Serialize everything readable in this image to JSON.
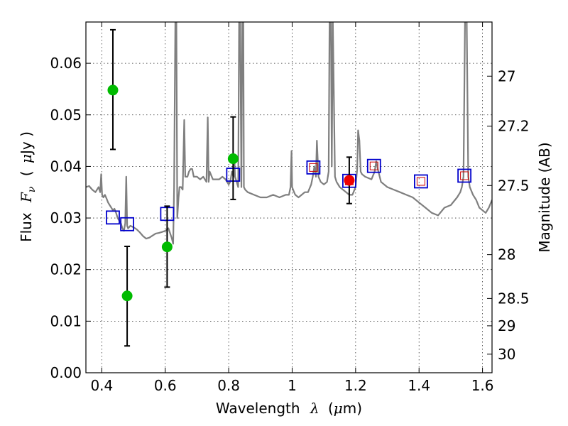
{
  "chart_data": {
    "type": "scatter",
    "xlabel_main": "Wavelength",
    "xlabel_symbol": "λ",
    "xlabel_unit_open": "(",
    "xlabel_unit_mu": "μ",
    "xlabel_unit_rest": "m)",
    "ylabel_main": "Flux",
    "ylabel_symbol": "F",
    "ylabel_subscript": "ν",
    "ylabel_unit_open": "(",
    "ylabel_unit_mu": "μ",
    "ylabel_unit_rest": "Jy )",
    "y2label": "Magnitude (AB)",
    "xlim": [
      0.35,
      1.63
    ],
    "ylim": [
      0.0,
      0.068
    ],
    "grid": true,
    "x_ticks": [
      0.4,
      0.6,
      0.8,
      1.0,
      1.2,
      1.4,
      1.6
    ],
    "x_tick_labels": [
      "0.4",
      "0.6",
      "0.8",
      "1",
      "1.2",
      "1.4",
      "1.6"
    ],
    "y_ticks": [
      0.0,
      0.01,
      0.02,
      0.03,
      0.04,
      0.05,
      0.06
    ],
    "y_tick_labels": [
      "0.00",
      "0.01",
      "0.02",
      "0.03",
      "0.04",
      "0.05",
      "0.06"
    ],
    "y2_ticks": [
      {
        "flux": 0.0575,
        "label": "27"
      },
      {
        "flux": 0.0478,
        "label": "27.2"
      },
      {
        "flux": 0.0363,
        "label": "27.5"
      },
      {
        "flux": 0.0229,
        "label": "28"
      },
      {
        "flux": 0.0144,
        "label": "28.5"
      },
      {
        "flux": 0.0091,
        "label": "29"
      },
      {
        "flux": 0.0036,
        "label": "30"
      }
    ],
    "colors": {
      "spectrum": "#7f7f7f",
      "observed": "#00bb00",
      "detection": "#ee0000",
      "model_box": "#0000cc",
      "model_inner": "#cc0000",
      "errorbar": "#000000"
    },
    "observed_points": [
      {
        "x": 0.435,
        "y": 0.0548,
        "yerr_low": 0.0433,
        "yerr_high": 0.0665
      },
      {
        "x": 0.48,
        "y": 0.0149,
        "yerr_low": 0.0052,
        "yerr_high": 0.0245
      },
      {
        "x": 0.606,
        "y": 0.0244,
        "yerr_low": 0.0166,
        "yerr_high": 0.0323
      },
      {
        "x": 0.814,
        "y": 0.0415,
        "yerr_low": 0.0336,
        "yerr_high": 0.0496
      }
    ],
    "detection_points": [
      {
        "x": 1.18,
        "y": 0.0373,
        "yerr_low": 0.0328,
        "yerr_high": 0.0418
      }
    ],
    "model_points": [
      {
        "x": 0.435,
        "y": 0.0301,
        "inner": false
      },
      {
        "x": 0.48,
        "y": 0.0288,
        "inner": false
      },
      {
        "x": 0.606,
        "y": 0.0308,
        "inner": false
      },
      {
        "x": 0.814,
        "y": 0.0384,
        "inner": false
      },
      {
        "x": 1.067,
        "y": 0.0398,
        "inner": true
      },
      {
        "x": 1.18,
        "y": 0.0372,
        "inner": true
      },
      {
        "x": 1.258,
        "y": 0.0401,
        "inner": true
      },
      {
        "x": 1.406,
        "y": 0.0371,
        "inner": true
      },
      {
        "x": 1.543,
        "y": 0.0382,
        "inner": true
      }
    ],
    "spectrum": {
      "x": [
        0.35,
        0.36,
        0.37,
        0.38,
        0.39,
        0.395,
        0.398,
        0.401,
        0.405,
        0.41,
        0.415,
        0.42,
        0.425,
        0.43,
        0.435,
        0.44,
        0.445,
        0.45,
        0.455,
        0.46,
        0.465,
        0.47,
        0.474,
        0.477,
        0.48,
        0.483,
        0.49,
        0.5,
        0.51,
        0.52,
        0.53,
        0.54,
        0.55,
        0.56,
        0.57,
        0.58,
        0.59,
        0.6,
        0.61,
        0.62,
        0.625,
        0.628,
        0.632,
        0.635,
        0.638,
        0.642,
        0.645,
        0.65,
        0.655,
        0.66,
        0.663,
        0.666,
        0.67,
        0.675,
        0.68,
        0.685,
        0.69,
        0.7,
        0.71,
        0.72,
        0.73,
        0.734,
        0.737,
        0.74,
        0.75,
        0.76,
        0.77,
        0.78,
        0.79,
        0.8,
        0.805,
        0.81,
        0.815,
        0.818,
        0.82,
        0.825,
        0.83,
        0.833,
        0.836,
        0.84,
        0.843,
        0.846,
        0.848,
        0.852,
        0.86,
        0.88,
        0.9,
        0.92,
        0.94,
        0.96,
        0.98,
        0.99,
        0.995,
        0.998,
        1.0,
        1.003,
        1.006,
        1.01,
        1.02,
        1.03,
        1.04,
        1.05,
        1.06,
        1.065,
        1.07,
        1.075,
        1.078,
        1.083,
        1.09,
        1.1,
        1.11,
        1.115,
        1.118,
        1.122,
        1.125,
        1.128,
        1.135,
        1.14,
        1.15,
        1.16,
        1.17,
        1.18,
        1.19,
        1.2,
        1.205,
        1.208,
        1.212,
        1.216,
        1.22,
        1.23,
        1.25,
        1.26,
        1.265,
        1.27,
        1.28,
        1.3,
        1.32,
        1.34,
        1.36,
        1.38,
        1.4,
        1.42,
        1.44,
        1.46,
        1.48,
        1.5,
        1.52,
        1.53,
        1.535,
        1.54,
        1.545,
        1.55,
        1.555,
        1.56,
        1.57,
        1.58,
        1.59,
        1.6,
        1.61,
        1.62,
        1.63
      ],
      "y": [
        0.036,
        0.0362,
        0.0355,
        0.035,
        0.036,
        0.035,
        0.0385,
        0.0345,
        0.034,
        0.0345,
        0.0338,
        0.033,
        0.0325,
        0.032,
        0.0315,
        0.0318,
        0.031,
        0.03,
        0.0295,
        0.029,
        0.028,
        0.0275,
        0.029,
        0.038,
        0.0285,
        0.028,
        0.0285,
        0.0282,
        0.0278,
        0.0272,
        0.0265,
        0.026,
        0.0262,
        0.0266,
        0.027,
        0.0271,
        0.0273,
        0.0275,
        0.028,
        0.0262,
        0.025,
        0.036,
        0.069,
        0.069,
        0.03,
        0.034,
        0.036,
        0.036,
        0.0355,
        0.049,
        0.038,
        0.038,
        0.038,
        0.039,
        0.0395,
        0.0395,
        0.038,
        0.038,
        0.0375,
        0.038,
        0.037,
        0.0495,
        0.037,
        0.039,
        0.0375,
        0.0375,
        0.0375,
        0.038,
        0.0375,
        0.0365,
        0.037,
        0.039,
        0.038,
        0.042,
        0.038,
        0.037,
        0.036,
        0.069,
        0.069,
        0.036,
        0.069,
        0.069,
        0.036,
        0.0355,
        0.035,
        0.0345,
        0.034,
        0.034,
        0.0345,
        0.034,
        0.0345,
        0.0345,
        0.036,
        0.043,
        0.036,
        0.0355,
        0.035,
        0.0345,
        0.034,
        0.0345,
        0.035,
        0.035,
        0.0365,
        0.038,
        0.04,
        0.038,
        0.045,
        0.038,
        0.037,
        0.0365,
        0.037,
        0.039,
        0.069,
        0.069,
        0.04,
        0.069,
        0.038,
        0.037,
        0.036,
        0.0355,
        0.035,
        0.0345,
        0.0345,
        0.036,
        0.0395,
        0.047,
        0.045,
        0.039,
        0.0385,
        0.038,
        0.0375,
        0.039,
        0.041,
        0.0395,
        0.037,
        0.036,
        0.0355,
        0.035,
        0.0345,
        0.034,
        0.033,
        0.032,
        0.031,
        0.0305,
        0.032,
        0.0325,
        0.034,
        0.035,
        0.036,
        0.038,
        0.069,
        0.069,
        0.038,
        0.036,
        0.0345,
        0.0335,
        0.032,
        0.0315,
        0.031,
        0.032,
        0.0335
      ]
    }
  }
}
